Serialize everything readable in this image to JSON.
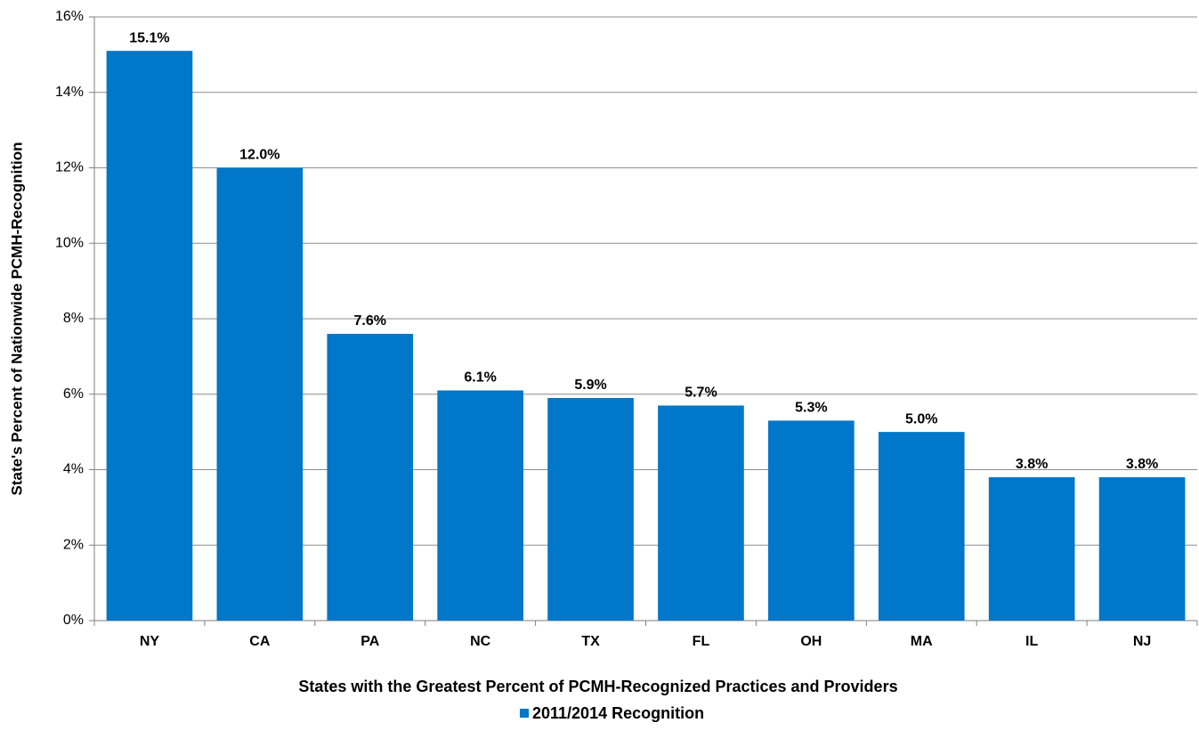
{
  "chart_data": {
    "type": "bar",
    "x_label": "States with the Greatest Percent of PCMH-Recognized Practices and Providers",
    "y_label": "State's Percent of Nationwide PCMH-Recognition",
    "categories": [
      "NY",
      "CA",
      "PA",
      "NC",
      "TX",
      "FL",
      "OH",
      "MA",
      "IL",
      "NJ"
    ],
    "series": [
      {
        "name": "2011/2014 Recognition",
        "color": "#0077c8",
        "values": [
          15.1,
          12,
          7.6,
          6.1,
          5.9,
          5.7,
          5.3,
          5,
          3.8,
          3.8
        ],
        "value_labels": [
          "15.1%",
          "12.0%",
          "7.6%",
          "6.1%",
          "5.9%",
          "5.7%",
          "5.3%",
          "5.0%",
          "3.8%",
          "3.8%"
        ]
      }
    ],
    "ylim": [
      0,
      16
    ],
    "yticks": [
      {
        "value": 0,
        "label": "0%"
      },
      {
        "value": 2,
        "label": "2%"
      },
      {
        "value": 4,
        "label": "4%"
      },
      {
        "value": 6,
        "label": "6%"
      },
      {
        "value": 8,
        "label": "8%"
      },
      {
        "value": 10,
        "label": "10%"
      },
      {
        "value": 12,
        "label": "12%"
      },
      {
        "value": 14,
        "label": "14%"
      },
      {
        "value": 16,
        "label": "16%"
      }
    ],
    "grid": true,
    "legend": "bottom"
  }
}
